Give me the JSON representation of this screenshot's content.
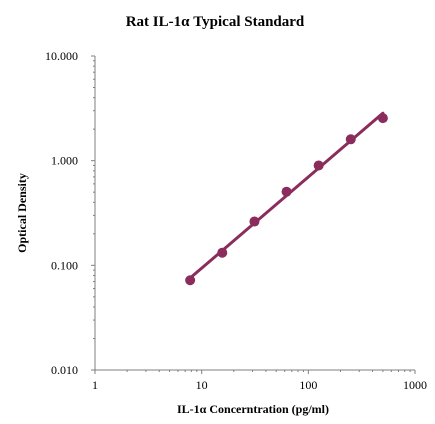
{
  "chart_data": {
    "type": "scatter",
    "title": "Rat IL-1α Typical Standard",
    "xlabel": "IL-1α Concerntration (pg/ml)",
    "ylabel": "Optical Density",
    "x_scale": "log",
    "y_scale": "log",
    "xlim": [
      1,
      1000
    ],
    "ylim": [
      0.01,
      10
    ],
    "x_ticks": [
      "1",
      "10",
      "100",
      "1000"
    ],
    "y_ticks": [
      "0.010",
      "0.100",
      "1.000",
      "10.000"
    ],
    "grid": false,
    "legend": "none",
    "series": [
      {
        "x": [
          7.8,
          15.6,
          31.25,
          62.5,
          125,
          250,
          500
        ],
        "y": [
          0.072,
          0.132,
          0.262,
          0.505,
          0.9,
          1.6,
          2.55
        ],
        "color": "#8b2d5c",
        "trendline": "power"
      }
    ]
  }
}
